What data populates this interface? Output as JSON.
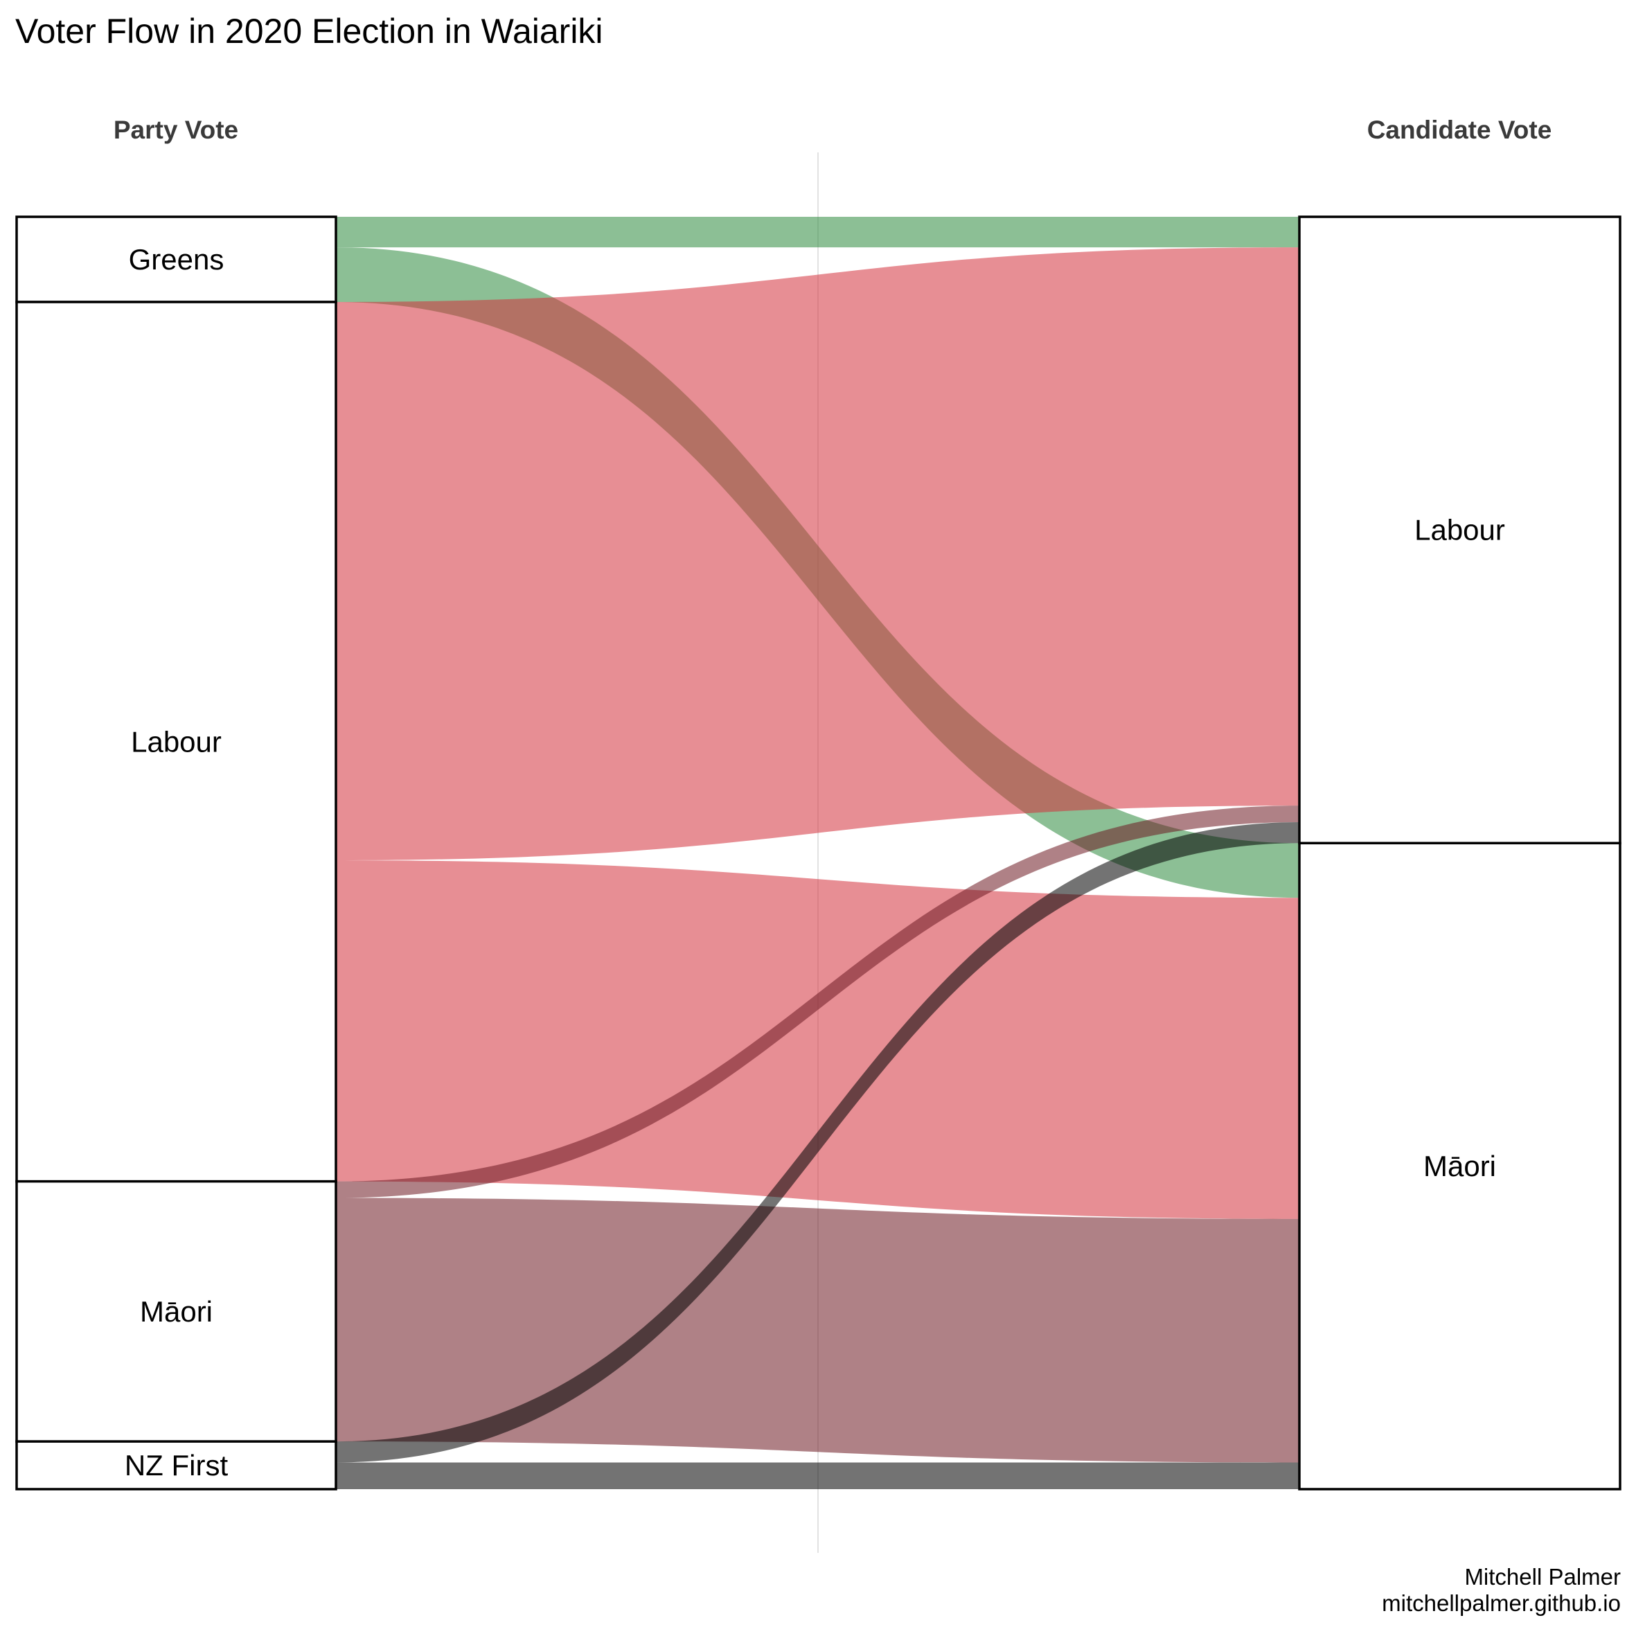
{
  "chart_data": {
    "type": "sankey",
    "title": "Voter Flow in 2020 Election in Waiariki",
    "axis_labels": [
      "Party Vote",
      "Candidate Vote"
    ],
    "left_nodes": [
      "Greens",
      "Labour",
      "Māori",
      "NZ First"
    ],
    "right_nodes": [
      "Labour",
      "Māori"
    ],
    "colors": {
      "Greens": "#2e8b3e",
      "Labour": "#d3323c",
      "Māori": "#6e1a22",
      "NZ First": "#000000"
    },
    "flows": [
      {
        "from": "Greens",
        "to": "Labour",
        "value": 480
      },
      {
        "from": "Greens",
        "to": "Māori",
        "value": 860
      },
      {
        "from": "Labour",
        "to": "Labour",
        "value": 8780
      },
      {
        "from": "Labour",
        "to": "Māori",
        "value": 5050
      },
      {
        "from": "Māori",
        "to": "Labour",
        "value": 260
      },
      {
        "from": "Māori",
        "to": "Māori",
        "value": 3830
      },
      {
        "from": "NZ First",
        "to": "Labour",
        "value": 330
      },
      {
        "from": "NZ First",
        "to": "Māori",
        "value": 420
      }
    ]
  },
  "caption": {
    "line1": "Mitchell Palmer",
    "line2": "mitchellpalmer.github.io"
  }
}
